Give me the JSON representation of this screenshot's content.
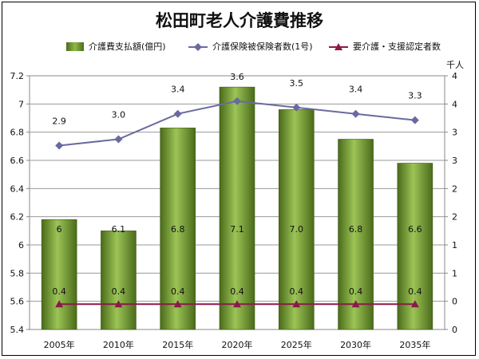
{
  "title": "松田町老人介護費推移",
  "legend": {
    "bar": "介護費支払額(億円)",
    "line1": "介護保険被保険者数(1号)",
    "line2": "要介護・支援認定者数"
  },
  "chart_data": {
    "type": "bar+line",
    "title": "松田町老人介護費推移",
    "categories": [
      "2005年",
      "2010年",
      "2015年",
      "2020年",
      "2025年",
      "2030年",
      "2035年"
    ],
    "series": [
      {
        "name": "介護費支払額(億円)",
        "type": "bar",
        "axis": "left",
        "color": "#6f9a2e",
        "values": [
          6.18,
          6.1,
          6.83,
          7.12,
          6.96,
          6.75,
          6.58
        ],
        "labels": [
          "6",
          "6.1",
          "6.8",
          "7.1",
          "7.0",
          "6.8",
          "6.6"
        ]
      },
      {
        "name": "介護保険被保険者数(1号)",
        "type": "line",
        "axis": "right",
        "color": "#6a6aa0",
        "marker": "diamond",
        "values": [
          2.9,
          3.0,
          3.4,
          3.6,
          3.5,
          3.4,
          3.3
        ],
        "labels": [
          "2.9",
          "3.0",
          "3.4",
          "3.6",
          "3.5",
          "3.4",
          "3.3"
        ]
      },
      {
        "name": "要介護・支援認定者数",
        "type": "line",
        "axis": "right",
        "color": "#8b1a4a",
        "marker": "triangle",
        "values": [
          0.4,
          0.4,
          0.4,
          0.4,
          0.4,
          0.4,
          0.4
        ],
        "labels": [
          "0.4",
          "0.4",
          "0.4",
          "0.4",
          "0.4",
          "0.4",
          "0.4"
        ]
      }
    ],
    "left_axis": {
      "min": 5.4,
      "max": 7.2,
      "ticks": [
        "5.4",
        "5.6",
        "5.8",
        "6",
        "6.2",
        "6.4",
        "6.6",
        "6.8",
        "7",
        "7.2"
      ]
    },
    "right_axis": {
      "label": "千人",
      "min": 0,
      "max": 4,
      "ticks": [
        "0",
        "0",
        "1",
        "1",
        "2",
        "2",
        "3",
        "3",
        "4",
        "4"
      ]
    },
    "grid": true,
    "legend_position": "top"
  }
}
